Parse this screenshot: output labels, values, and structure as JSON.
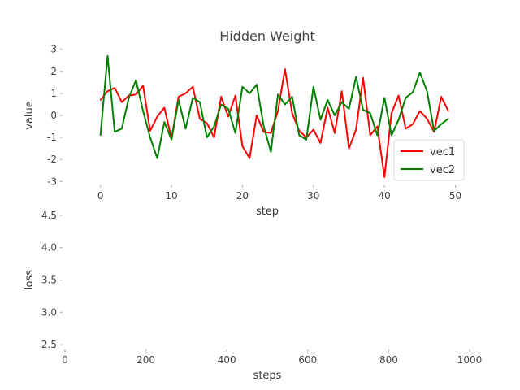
{
  "chart_data": [
    {
      "type": "line",
      "title": "Hidden Weight",
      "xlabel": "step",
      "ylabel": "value",
      "xlim": [
        -5,
        52
      ],
      "ylim": [
        -3.1,
        3.1
      ],
      "xticks": [
        0,
        10,
        20,
        30,
        40,
        50
      ],
      "yticks": [
        -3,
        -2,
        -1,
        0,
        1,
        2,
        3
      ],
      "grid": false,
      "legend_position": "center-right",
      "series": [
        {
          "name": "vec1",
          "color": "#ff0000",
          "x": [
            0,
            1,
            2,
            3,
            4,
            5,
            6,
            7,
            8,
            9,
            10,
            11,
            12,
            13,
            14,
            15,
            16,
            17,
            18,
            19,
            20,
            21,
            22,
            23,
            24,
            25,
            26,
            27,
            28,
            29,
            30,
            31,
            32,
            33,
            34,
            35,
            36,
            37,
            38,
            39,
            40,
            41,
            42,
            43,
            44,
            45,
            46,
            47,
            48,
            49
          ],
          "values": [
            0.7,
            1.1,
            1.25,
            0.6,
            0.9,
            0.95,
            1.35,
            -0.7,
            -0.05,
            0.35,
            -1.05,
            0.85,
            1.0,
            1.3,
            -0.15,
            -0.35,
            -1.0,
            0.85,
            -0.05,
            0.9,
            -1.4,
            -1.95,
            0.0,
            -0.75,
            -0.8,
            0.2,
            2.1,
            0.1,
            -0.7,
            -1.0,
            -0.65,
            -1.25,
            0.35,
            -0.8,
            1.1,
            -1.5,
            -0.65,
            1.7,
            -0.9,
            -0.5,
            -2.8,
            0.1,
            0.9,
            -0.6,
            -0.4,
            0.2,
            -0.15,
            -0.75,
            0.85,
            0.2
          ]
        },
        {
          "name": "vec2",
          "color": "#008000",
          "x": [
            0,
            1,
            2,
            3,
            4,
            5,
            6,
            7,
            8,
            9,
            10,
            11,
            12,
            13,
            14,
            15,
            16,
            17,
            18,
            19,
            20,
            21,
            22,
            23,
            24,
            25,
            26,
            27,
            28,
            29,
            30,
            31,
            32,
            33,
            34,
            35,
            36,
            37,
            38,
            39,
            40,
            41,
            42,
            43,
            44,
            45,
            46,
            47,
            48,
            49
          ],
          "values": [
            -0.9,
            2.7,
            -0.75,
            -0.6,
            0.8,
            1.6,
            0.2,
            -1.0,
            -1.95,
            -0.3,
            -1.1,
            0.7,
            -0.6,
            0.8,
            0.6,
            -1.0,
            -0.5,
            0.5,
            0.3,
            -0.8,
            1.3,
            1.0,
            1.4,
            -0.5,
            -1.65,
            0.95,
            0.5,
            0.85,
            -0.9,
            -1.1,
            1.3,
            -0.2,
            0.7,
            0.0,
            0.6,
            0.3,
            1.75,
            0.25,
            0.1,
            -0.9,
            0.8,
            -0.9,
            -0.2,
            0.8,
            1.05,
            1.95,
            1.1,
            -0.7,
            -0.4,
            -0.15
          ]
        }
      ]
    },
    {
      "type": "line",
      "title": "",
      "xlabel": "steps",
      "ylabel": "loss",
      "xlim": [
        0,
        1000
      ],
      "ylim": [
        2.45,
        4.55
      ],
      "xticks": [
        0,
        200,
        400,
        600,
        800,
        1000
      ],
      "yticks": [
        2.5,
        3.0,
        3.5,
        4.0,
        4.5
      ],
      "ytick_labels": [
        "2.5",
        "3.0",
        "3.5",
        "4.0",
        "4.5"
      ],
      "grid": false,
      "series": []
    }
  ]
}
